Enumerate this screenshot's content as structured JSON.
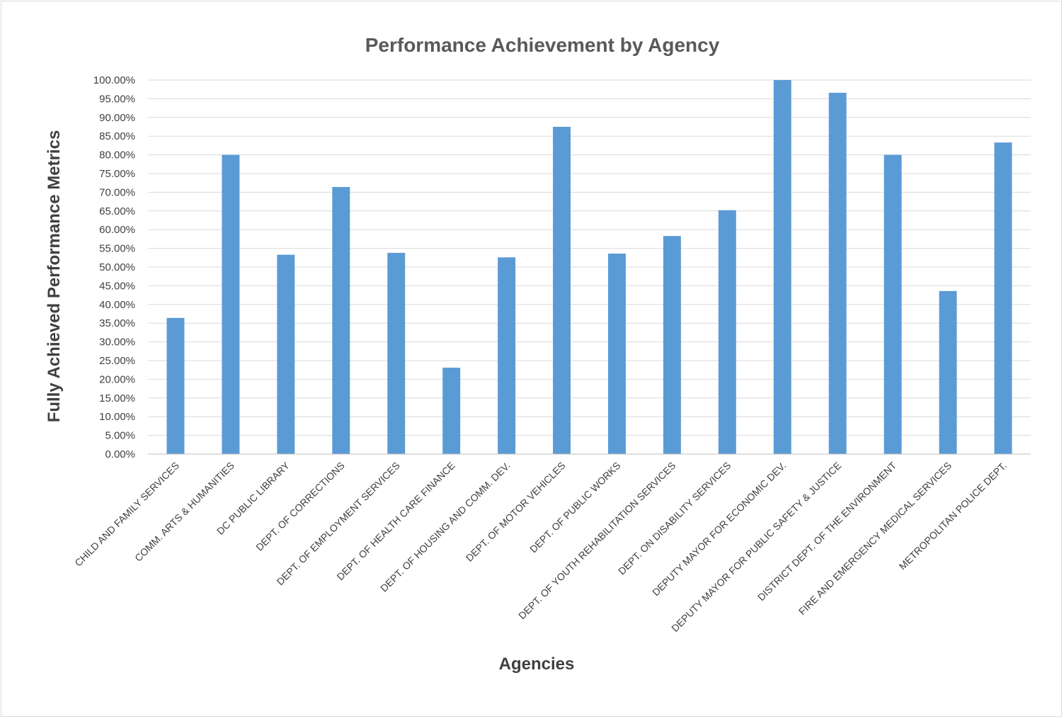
{
  "colors": {
    "bar": "#5b9bd5",
    "grid": "#d9d9d9",
    "axis_line": "#bfbfbf",
    "text": "#404040",
    "title": "#595959"
  },
  "chart_data": {
    "type": "bar",
    "title": "Performance Achievement by Agency",
    "xlabel": "Agencies",
    "ylabel": "Fully Achieved Performance Metrics",
    "ylim": [
      0,
      100
    ],
    "ytick_step": 5,
    "ytick_format": "percent_2dp",
    "grid": true,
    "legend": "none",
    "categories": [
      "CHILD AND FAMILY SERVICES",
      "COMM. ARTS & HUMANITIES",
      "DC PUBLIC LIBRARY",
      "DEPT. OF CORRECTIONS",
      "DEPT. OF EMPLOYMENT SERVICES",
      "DEPT. OF HEALTH CARE FINANCE",
      "DEPT. OF HOUSING AND COMM. DEV.",
      "DEPT. OF MOTOR VEHICLES",
      "DEPT. OF PUBLIC WORKS",
      "DEPT. OF YOUTH REHABILITATION SERVICES",
      "DEPT. ON DISABILITY SERVICES",
      "DEPUTY MAYOR FOR ECONOMIC DEV.",
      "DEPUTY MAYOR FOR PUBLIC SAFETY & JUSTICE",
      "DISTRICT DEPT. OF THE ENVIRONMENT",
      "FIRE AND EMERGENCY MEDICAL SERVICES",
      "METROPOLITAN POLICE DEPT."
    ],
    "values": [
      36.4,
      80.0,
      53.3,
      71.4,
      53.8,
      23.1,
      52.6,
      87.5,
      53.6,
      58.3,
      65.2,
      100.0,
      96.6,
      80.0,
      43.6,
      83.3
    ]
  }
}
